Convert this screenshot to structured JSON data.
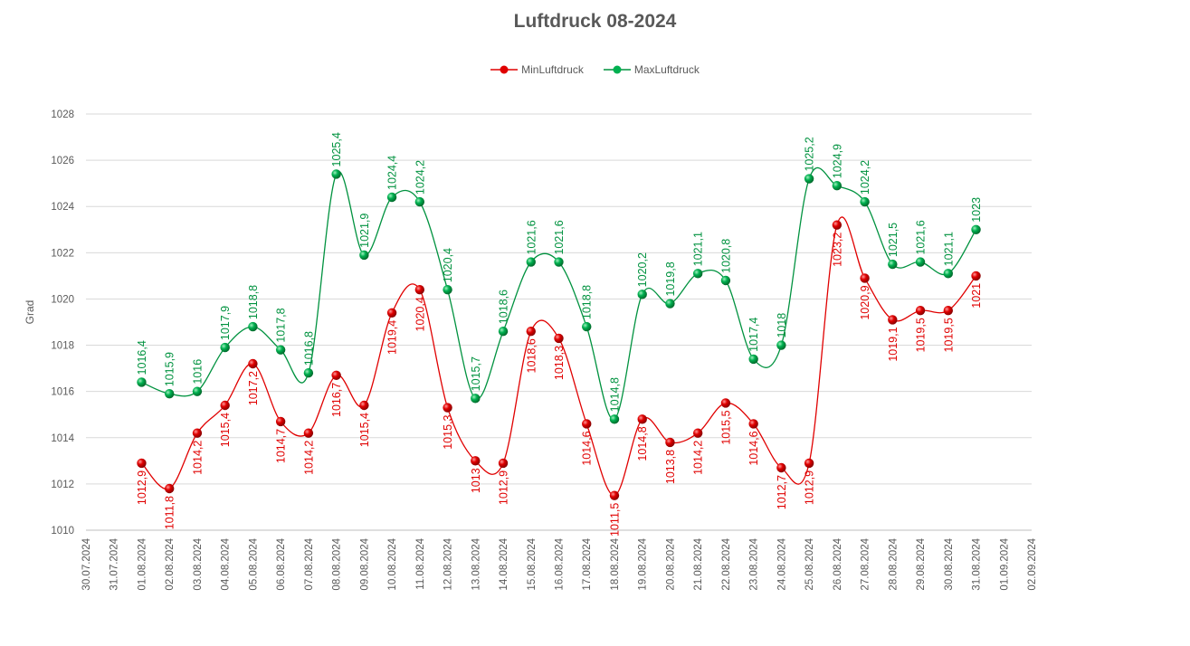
{
  "chart_data": {
    "type": "line",
    "title": "Luftdruck 08-2024",
    "ylabel": "Grad",
    "xlabel": "",
    "ylim": [
      1010,
      1028
    ],
    "ytick_step": 2,
    "grid": true,
    "smooth": true,
    "legend_position": "top",
    "categories": [
      "30.07.2024",
      "31.07.2024",
      "01.08.2024",
      "02.08.2024",
      "03.08.2024",
      "04.08.2024",
      "05.08.2024",
      "06.08.2024",
      "07.08.2024",
      "08.08.2024",
      "09.08.2024",
      "10.08.2024",
      "11.08.2024",
      "12.08.2024",
      "13.08.2024",
      "14.08.2024",
      "15.08.2024",
      "16.08.2024",
      "17.08.2024",
      "18.08.2024",
      "19.08.2024",
      "20.08.2024",
      "21.08.2024",
      "22.08.2024",
      "23.08.2024",
      "24.08.2024",
      "25.08.2024",
      "26.08.2024",
      "27.08.2024",
      "28.08.2024",
      "29.08.2024",
      "30.08.2024",
      "31.08.2024",
      "01.09.2024",
      "02.09.2024"
    ],
    "series": [
      {
        "name": "MinLuftdruck",
        "color": "#e00000",
        "values": [
          null,
          null,
          1012.9,
          1011.8,
          1014.2,
          1015.4,
          1017.2,
          1014.7,
          1014.2,
          1016.7,
          1015.4,
          1019.4,
          1020.4,
          1015.3,
          1013,
          1012.9,
          1018.6,
          1018.3,
          1014.6,
          1011.5,
          1014.8,
          1013.8,
          1014.2,
          1015.5,
          1014.6,
          1012.7,
          1012.9,
          1023.2,
          1020.9,
          1019.1,
          1019.5,
          1019.5,
          1021,
          null,
          null
        ],
        "labels": [
          null,
          null,
          "1012,9",
          "1011,8",
          "1014,2",
          "1015,4",
          "1017,2",
          "1014,7",
          "1014,2",
          "1016,7",
          "1015,4",
          "1019,4",
          "1020,4",
          "1015,3",
          "1013",
          "1012,9",
          "1018,6",
          "1018,3",
          "1014,6",
          "1011,5",
          "1014,8",
          "1013,8",
          "1014,2",
          "1015,5",
          "1014,6",
          "1012,7",
          "1012,9",
          "1023,2",
          "1020,9",
          "1019,1",
          "1019,5",
          "1019,5",
          "1021",
          null,
          null
        ]
      },
      {
        "name": "MaxLuftdruck",
        "color": "#00923f",
        "values": [
          null,
          null,
          1016.4,
          1015.9,
          1016,
          1017.9,
          1018.8,
          1017.8,
          1016.8,
          1025.4,
          1021.9,
          1024.4,
          1024.2,
          1020.4,
          1015.7,
          1018.6,
          1021.6,
          1021.6,
          1018.8,
          1014.8,
          1020.2,
          1019.8,
          1021.1,
          1020.8,
          1017.4,
          1018,
          1025.2,
          1024.9,
          1024.2,
          1021.5,
          1021.6,
          1021.1,
          1023,
          null,
          null
        ],
        "labels": [
          null,
          null,
          "1016,4",
          "1015,9",
          "1016",
          "1017,9",
          "1018,8",
          "1017,8",
          "1016,8",
          "1025,4",
          "1021,9",
          "1024,4",
          "1024,2",
          "1020,4",
          "1015,7",
          "1018,6",
          "1021,6",
          "1021,6",
          "1018,8",
          "1014,8",
          "1020,2",
          "1019,8",
          "1021,1",
          "1020,8",
          "1017,4",
          "1018",
          "1025,2",
          "1024,9",
          "1024,2",
          "1021,5",
          "1021,6",
          "1021,1",
          "1023",
          null,
          null
        ]
      }
    ]
  }
}
